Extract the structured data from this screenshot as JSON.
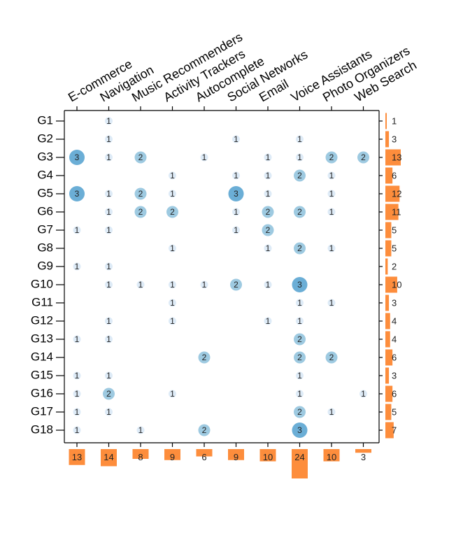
{
  "chart_data": {
    "type": "heatmap",
    "encoding": "bubble matrix with marginal bar totals",
    "columns": [
      "E-commerce",
      "Navigation",
      "Music Recommenders",
      "Activity Trackers",
      "Autocomplete",
      "Social Networks",
      "Email",
      "Voice Assistants",
      "Photo Organizers",
      "Web Search"
    ],
    "rows": [
      "G1",
      "G2",
      "G3",
      "G4",
      "G5",
      "G6",
      "G7",
      "G8",
      "G9",
      "G10",
      "G11",
      "G12",
      "G13",
      "G14",
      "G15",
      "G16",
      "G17",
      "G18"
    ],
    "matrix": [
      [
        0,
        1,
        0,
        0,
        0,
        0,
        0,
        0,
        0,
        0
      ],
      [
        0,
        1,
        0,
        0,
        0,
        1,
        0,
        1,
        0,
        0
      ],
      [
        3,
        1,
        2,
        0,
        1,
        0,
        1,
        1,
        2,
        2
      ],
      [
        0,
        0,
        0,
        1,
        0,
        1,
        1,
        2,
        1,
        0
      ],
      [
        3,
        1,
        2,
        1,
        0,
        3,
        1,
        0,
        1,
        0
      ],
      [
        0,
        1,
        2,
        2,
        0,
        1,
        2,
        2,
        1,
        0
      ],
      [
        1,
        1,
        0,
        0,
        0,
        1,
        2,
        0,
        0,
        0
      ],
      [
        0,
        0,
        0,
        1,
        0,
        0,
        1,
        2,
        1,
        0
      ],
      [
        1,
        1,
        0,
        0,
        0,
        0,
        0,
        0,
        0,
        0
      ],
      [
        0,
        1,
        1,
        1,
        1,
        2,
        1,
        3,
        0,
        0
      ],
      [
        0,
        0,
        0,
        1,
        0,
        0,
        0,
        1,
        1,
        0
      ],
      [
        0,
        1,
        0,
        1,
        0,
        0,
        1,
        1,
        0,
        0
      ],
      [
        1,
        1,
        0,
        0,
        0,
        0,
        0,
        2,
        0,
        0
      ],
      [
        0,
        0,
        0,
        0,
        2,
        0,
        0,
        2,
        2,
        0
      ],
      [
        1,
        1,
        0,
        0,
        0,
        0,
        0,
        1,
        0,
        0
      ],
      [
        1,
        2,
        0,
        1,
        0,
        0,
        0,
        1,
        0,
        1
      ],
      [
        1,
        1,
        0,
        0,
        0,
        0,
        0,
        2,
        1,
        0
      ],
      [
        1,
        0,
        1,
        0,
        2,
        0,
        0,
        3,
        0,
        0
      ]
    ],
    "row_totals": [
      1,
      3,
      13,
      6,
      12,
      11,
      5,
      5,
      2,
      10,
      3,
      4,
      4,
      6,
      3,
      6,
      5,
      7
    ],
    "column_totals": [
      13,
      14,
      8,
      9,
      6,
      9,
      10,
      24,
      10,
      3
    ],
    "colors": {
      "level_1": "#deebf7",
      "level_2": "#9ecae1",
      "level_3": "#6baed6",
      "totals_bar": "#fd8d3c",
      "axis": "#000000"
    }
  }
}
